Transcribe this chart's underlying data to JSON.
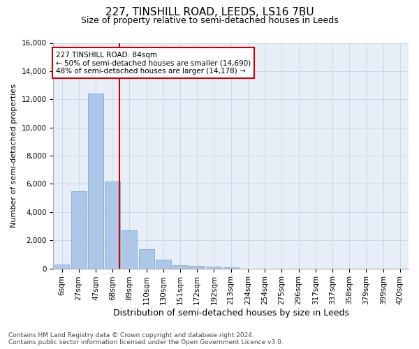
{
  "title1": "227, TINSHILL ROAD, LEEDS, LS16 7BU",
  "title2": "Size of property relative to semi-detached houses in Leeds",
  "xlabel": "Distribution of semi-detached houses by size in Leeds",
  "ylabel": "Number of semi-detached properties",
  "bar_labels": [
    "6sqm",
    "27sqm",
    "47sqm",
    "68sqm",
    "89sqm",
    "110sqm",
    "130sqm",
    "151sqm",
    "172sqm",
    "192sqm",
    "213sqm",
    "234sqm",
    "254sqm",
    "275sqm",
    "296sqm",
    "317sqm",
    "337sqm",
    "358sqm",
    "379sqm",
    "399sqm",
    "420sqm"
  ],
  "bar_values": [
    300,
    5500,
    12400,
    6150,
    2700,
    1350,
    600,
    230,
    180,
    130,
    100,
    0,
    0,
    0,
    0,
    0,
    0,
    0,
    0,
    0,
    0
  ],
  "bar_color": "#aec6e8",
  "bar_edgecolor": "#7aaed0",
  "annotation_title": "227 TINSHILL ROAD: 84sqm",
  "annotation_line1": "← 50% of semi-detached houses are smaller (14,690)",
  "annotation_line2": "48% of semi-detached houses are larger (14,178) →",
  "vline_color": "#cc0000",
  "vline_pos": 3.42,
  "annotation_box_edgecolor": "#cc0000",
  "ylim": [
    0,
    16000
  ],
  "yticks": [
    0,
    2000,
    4000,
    6000,
    8000,
    10000,
    12000,
    14000,
    16000
  ],
  "grid_color": "#c8d4e8",
  "bg_color": "#e8eef8",
  "footer_line1": "Contains HM Land Registry data © Crown copyright and database right 2024.",
  "footer_line2": "Contains public sector information licensed under the Open Government Licence v3.0.",
  "title1_fontsize": 11,
  "title2_fontsize": 9,
  "xlabel_fontsize": 9,
  "ylabel_fontsize": 8,
  "tick_fontsize": 7.5,
  "annotation_fontsize": 7.5,
  "footer_fontsize": 6.5
}
